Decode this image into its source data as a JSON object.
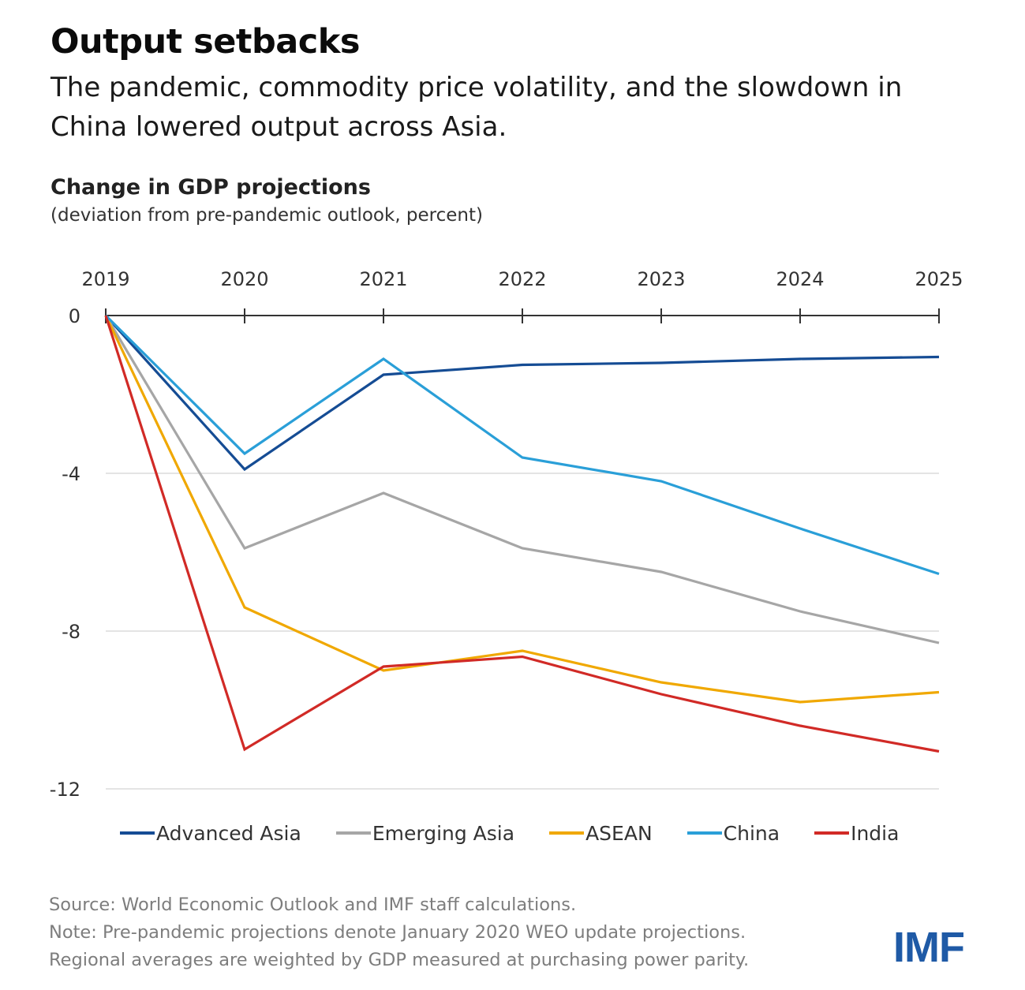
{
  "header": {
    "title": "Output setbacks",
    "subtitle": "The pandemic, commodity price volatility, and the slowdown in China lowered output across Asia."
  },
  "chart_data": {
    "type": "line",
    "title": "Change in GDP projections",
    "subtitle": "(deviation from pre-pandemic outlook, percent)",
    "x": [
      "2019",
      "2020",
      "2021",
      "2022",
      "2023",
      "2024",
      "2025"
    ],
    "ylim": [
      -12,
      0
    ],
    "yticks": [
      "0",
      "-4",
      "-8",
      "-12"
    ],
    "ytick_values": [
      0,
      -4,
      -8,
      -12
    ],
    "x_axis_position": "top",
    "grid": true,
    "legend_position": "bottom",
    "series": [
      {
        "name": "Advanced Asia",
        "color": "#154c94",
        "values": [
          0,
          -3.9,
          -1.5,
          -1.25,
          -1.2,
          -1.1,
          -1.05
        ]
      },
      {
        "name": "Emerging Asia",
        "color": "#a6a6a6",
        "values": [
          0,
          -5.9,
          -4.5,
          -5.9,
          -6.5,
          -7.5,
          -8.3
        ]
      },
      {
        "name": "ASEAN",
        "color": "#f0a800",
        "values": [
          0,
          -7.4,
          -9.0,
          -8.5,
          -9.3,
          -9.8,
          -9.55
        ]
      },
      {
        "name": "China",
        "color": "#2a9fd8",
        "values": [
          0,
          -3.5,
          -1.1,
          -3.6,
          -4.2,
          -5.4,
          -6.55
        ]
      },
      {
        "name": "India",
        "color": "#d12a26",
        "values": [
          0,
          -11.0,
          -8.9,
          -8.65,
          -9.6,
          -10.4,
          -11.05
        ]
      }
    ]
  },
  "footer": {
    "source": "Source: World Economic Outlook and IMF staff calculations.",
    "note_line1": "Note: Pre-pandemic projections denote January 2020 WEO update projections.",
    "note_line2": "Regional averages are weighted by GDP measured at purchasing power parity."
  },
  "logo": {
    "text": "IMF",
    "color": "#1f5aa6"
  }
}
